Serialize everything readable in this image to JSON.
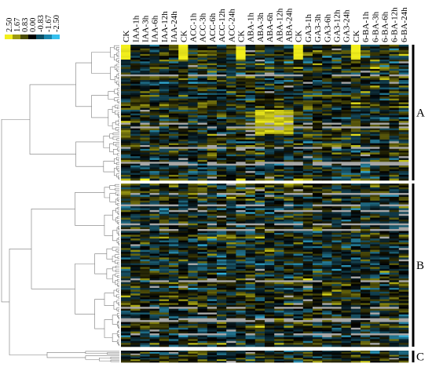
{
  "chart_data": {
    "type": "heatmap",
    "title": "",
    "xlabel": "",
    "ylabel": "",
    "color_scale": {
      "ticks": [
        "2.50",
        "1.67",
        "0.83",
        "0.00",
        "-0.83",
        "-1.67",
        "-2.50"
      ],
      "colors": [
        "#f2ef1c",
        "#9c9a10",
        "#4a4c08",
        "#000000",
        "#0b4d62",
        "#1a86ad",
        "#36c0ee"
      ],
      "missing_color": "#a6a6a6"
    },
    "columns": [
      "CK",
      "IAA-1h",
      "IAA-3h",
      "IAA-6h",
      "IAA-12h",
      "IAA-24h",
      "CK",
      "ACC-1h",
      "ACC-3h",
      "ACC-6h",
      "ACC-12h",
      "ACC-24h",
      "CK",
      "ABA-1h",
      "ABA-3h",
      "ABA-6h",
      "ABA-12h",
      "ABA-24h",
      "CK",
      "GA3-1h",
      "GA3-3h",
      "GA3-6h",
      "GA3-12h",
      "GA3-24h",
      "CK",
      "6-BA-1h",
      "6-BA-3h",
      "6-BA-6h",
      "6-BA-12h",
      "6-BA-24h"
    ],
    "clusters": [
      {
        "label": "A",
        "rows": 73
      },
      {
        "label": "B",
        "rows": 86
      },
      {
        "label": "C",
        "rows": 8
      }
    ],
    "value_range": [
      -2.5,
      2.5
    ]
  }
}
